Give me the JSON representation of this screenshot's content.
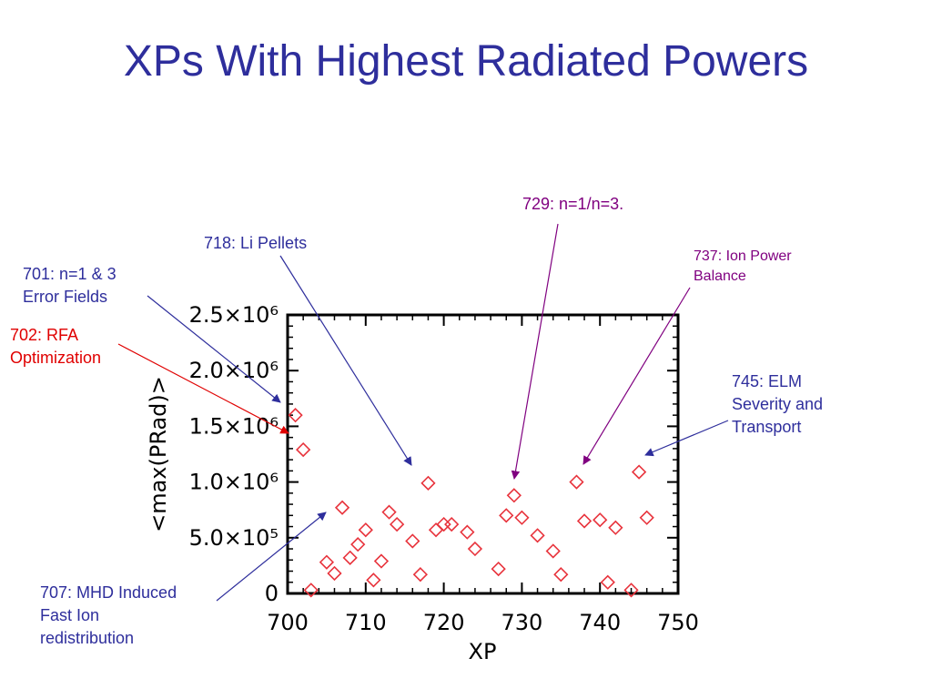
{
  "title": "XPs With Highest Radiated Powers",
  "colors": {
    "title": "#2e2e9c",
    "points": "#e8333c",
    "arrow_blue": "#2e2e9c",
    "arrow_red": "#e00000",
    "arrow_purple": "#800080"
  },
  "annotations": {
    "xp701": {
      "line1": "701: n=1 & 3",
      "line2": "Error Fields"
    },
    "xp702": {
      "line1": "702: RFA",
      "line2": "Optimization"
    },
    "xp718": {
      "line1": "718: Li Pellets"
    },
    "xp729": {
      "line1": "729: n=1/n=3."
    },
    "xp737": {
      "line1": "737: Ion Power",
      "line2": "Balance"
    },
    "xp745": {
      "line1": "745: ELM",
      "line2": "Severity and",
      "line3": "Transport"
    },
    "xp707": {
      "line1": "707: MHD Induced",
      "line2": "Fast Ion",
      "line3": "redistribution"
    }
  },
  "chart_data": {
    "type": "scatter",
    "xlabel": "XP",
    "ylabel": "<max(PRad)>",
    "xlim": [
      700,
      750
    ],
    "ylim": [
      0,
      2500000
    ],
    "x_ticks": [
      "700",
      "710",
      "720",
      "730",
      "740",
      "750"
    ],
    "y_ticks": [
      "0",
      "5.0×10⁵",
      "1.0×10⁶",
      "1.5×10⁶",
      "2.0×10⁶",
      "2.5×10⁶"
    ],
    "marker": "diamond",
    "points": [
      {
        "x": 701,
        "y": 1600000
      },
      {
        "x": 702,
        "y": 1290000
      },
      {
        "x": 703,
        "y": 30000
      },
      {
        "x": 705,
        "y": 280000
      },
      {
        "x": 706,
        "y": 180000
      },
      {
        "x": 707,
        "y": 770000
      },
      {
        "x": 708,
        "y": 320000
      },
      {
        "x": 709,
        "y": 440000
      },
      {
        "x": 710,
        "y": 570000
      },
      {
        "x": 711,
        "y": 120000
      },
      {
        "x": 712,
        "y": 290000
      },
      {
        "x": 713,
        "y": 730000
      },
      {
        "x": 714,
        "y": 620000
      },
      {
        "x": 716,
        "y": 470000
      },
      {
        "x": 717,
        "y": 170000
      },
      {
        "x": 718,
        "y": 990000
      },
      {
        "x": 719,
        "y": 570000
      },
      {
        "x": 720,
        "y": 620000
      },
      {
        "x": 721,
        "y": 620000
      },
      {
        "x": 723,
        "y": 550000
      },
      {
        "x": 724,
        "y": 400000
      },
      {
        "x": 727,
        "y": 220000
      },
      {
        "x": 728,
        "y": 700000
      },
      {
        "x": 729,
        "y": 880000
      },
      {
        "x": 730,
        "y": 680000
      },
      {
        "x": 732,
        "y": 520000
      },
      {
        "x": 734,
        "y": 380000
      },
      {
        "x": 735,
        "y": 170000
      },
      {
        "x": 737,
        "y": 1000000
      },
      {
        "x": 738,
        "y": 650000
      },
      {
        "x": 740,
        "y": 660000
      },
      {
        "x": 741,
        "y": 100000
      },
      {
        "x": 742,
        "y": 590000
      },
      {
        "x": 744,
        "y": 30000
      },
      {
        "x": 745,
        "y": 1090000
      },
      {
        "x": 746,
        "y": 680000
      }
    ]
  }
}
